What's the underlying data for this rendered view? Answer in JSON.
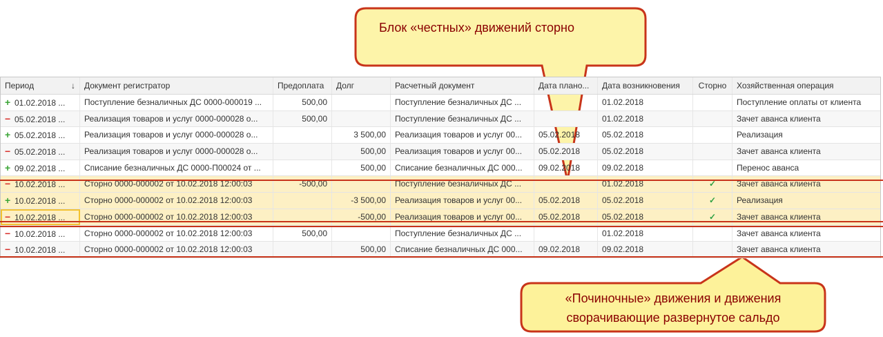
{
  "columns": [
    "Период",
    "Документ регистратор",
    "Предоплата",
    "Долг",
    "Расчетный документ",
    "Дата плано...",
    "Дата возникновения",
    "Сторно",
    "Хозяйственная операция"
  ],
  "sort_icon": "arrow-down-icon",
  "rows": [
    {
      "sign": "+",
      "period": "01.02.2018 ...",
      "doc": "Поступление безналичных ДС 0000-000019 ...",
      "prepay": "500,00",
      "debt": "",
      "calc": "Поступление безналичных ДС ...",
      "plan": "",
      "date": "01.02.2018",
      "storno": "",
      "op": "Поступление оплаты от клиента"
    },
    {
      "sign": "−",
      "period": "05.02.2018 ...",
      "doc": "Реализация товаров и услуг 0000-000028 о...",
      "prepay": "500,00",
      "debt": "",
      "calc": "Поступление безналичных ДС ...",
      "plan": "",
      "date": "01.02.2018",
      "storno": "",
      "op": "Зачет аванса клиента"
    },
    {
      "sign": "+",
      "period": "05.02.2018 ...",
      "doc": "Реализация товаров и услуг 0000-000028 о...",
      "prepay": "",
      "debt": "3 500,00",
      "calc": "Реализация товаров и услуг 00...",
      "plan": "05.02.2018",
      "date": "05.02.2018",
      "storno": "",
      "op": "Реализация"
    },
    {
      "sign": "−",
      "period": "05.02.2018 ...",
      "doc": "Реализация товаров и услуг 0000-000028 о...",
      "prepay": "",
      "debt": "500,00",
      "calc": "Реализация товаров и услуг 00...",
      "plan": "05.02.2018",
      "date": "05.02.2018",
      "storno": "",
      "op": "Зачет аванса клиента"
    },
    {
      "sign": "+",
      "period": "09.02.2018 ...",
      "doc": "Списание безналичных ДС 0000-П00024 от ...",
      "prepay": "",
      "debt": "500,00",
      "calc": "Списание безналичных ДС 000...",
      "plan": "09.02.2018",
      "date": "09.02.2018",
      "storno": "",
      "op": "Перенос аванса"
    },
    {
      "sign": "−",
      "period": "10.02.2018 ...",
      "doc": "Сторно 0000-000002 от 10.02.2018 12:00:03",
      "prepay": "-500,00",
      "debt": "",
      "calc": "Поступление безналичных ДС ...",
      "plan": "",
      "date": "01.02.2018",
      "storno": "✓",
      "op": "Зачет аванса клиента"
    },
    {
      "sign": "+",
      "period": "10.02.2018 ...",
      "doc": "Сторно 0000-000002 от 10.02.2018 12:00:03",
      "prepay": "",
      "debt": "-3 500,00",
      "calc": "Реализация товаров и услуг 00...",
      "plan": "05.02.2018",
      "date": "05.02.2018",
      "storno": "✓",
      "op": "Реализация"
    },
    {
      "sign": "−",
      "period": "10.02.2018 ...",
      "doc": "Сторно 0000-000002 от 10.02.2018 12:00:03",
      "prepay": "",
      "debt": "-500,00",
      "calc": "Реализация товаров и услуг 00...",
      "plan": "05.02.2018",
      "date": "05.02.2018",
      "storno": "✓",
      "op": "Зачет аванса клиента"
    },
    {
      "sign": "−",
      "period": "10.02.2018 ...",
      "doc": "Сторно 0000-000002 от 10.02.2018 12:00:03",
      "prepay": "500,00",
      "debt": "",
      "calc": "Поступление безналичных ДС ...",
      "plan": "",
      "date": "01.02.2018",
      "storno": "",
      "op": "Зачет аванса клиента"
    },
    {
      "sign": "−",
      "period": "10.02.2018 ...",
      "doc": "Сторно 0000-000002 от 10.02.2018 12:00:03",
      "prepay": "",
      "debt": "500,00",
      "calc": "Списание безналичных ДС 000...",
      "plan": "09.02.2018",
      "date": "09.02.2018",
      "storno": "",
      "op": "Зачет аванса клиента"
    }
  ],
  "callouts": {
    "top": "Блок «честных» движений сторно",
    "bottom_line1": "«Починочные» движения и движения",
    "bottom_line2": "сворачивающие развернутое сальдо"
  },
  "colors": {
    "highlight": "#fdf0c4",
    "callout_fill": "#fdf29a",
    "callout_border": "#c8341a",
    "plus": "#3aa535",
    "minus": "#d9302c"
  }
}
